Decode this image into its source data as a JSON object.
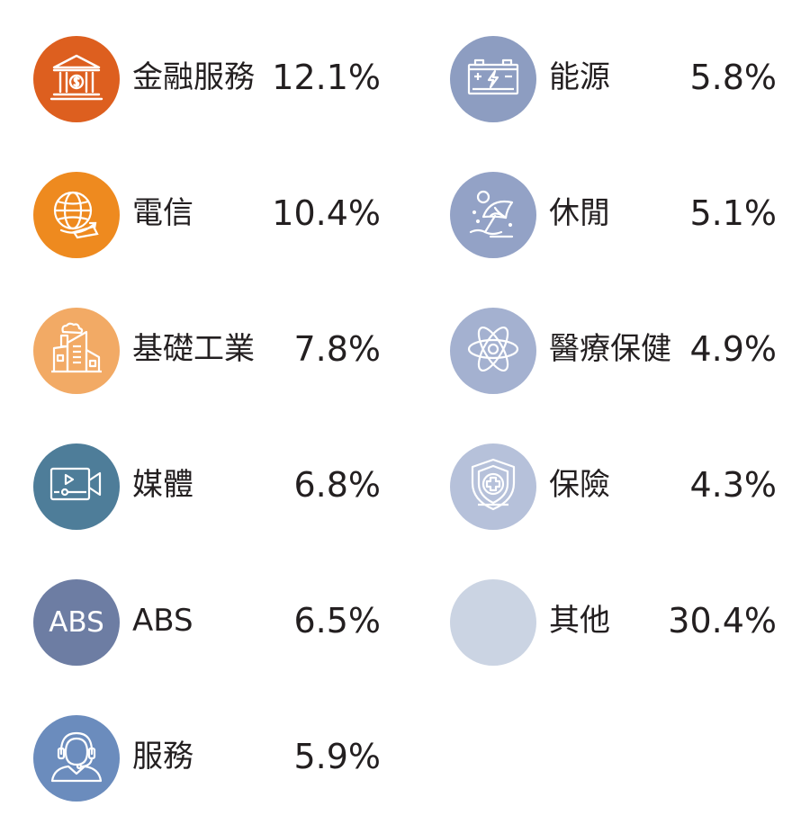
{
  "chart_data": {
    "type": "pie",
    "categories": [
      "金融服務",
      "電信",
      "基礎工業",
      "媒體",
      "ABS",
      "服務",
      "能源",
      "休閒",
      "醫療保健",
      "保險",
      "其他"
    ],
    "values": [
      12.1,
      10.4,
      7.8,
      6.8,
      6.5,
      5.9,
      5.8,
      5.1,
      4.9,
      4.3,
      30.4
    ],
    "title": "",
    "xlabel": "",
    "ylabel": "",
    "unit": "%"
  },
  "legend": {
    "left": [
      {
        "label": "金融服務",
        "value_text": "12.1%",
        "color": "#dd5f1f",
        "icon": "bank-icon"
      },
      {
        "label": "電信",
        "value_text": "10.4%",
        "color": "#ee8a1f",
        "icon": "globe-icon"
      },
      {
        "label": "基礎工業",
        "value_text": "7.8%",
        "color": "#f2aa65",
        "icon": "factory-icon"
      },
      {
        "label": "媒體",
        "value_text": "6.8%",
        "color": "#4e7d99",
        "icon": "video-camera-icon"
      },
      {
        "label": "ABS",
        "value_text": "6.5%",
        "color": "#6d7da3",
        "icon": "abs-text-icon",
        "icon_text": "ABS"
      },
      {
        "label": "服務",
        "value_text": "5.9%",
        "color": "#6b8cbd",
        "icon": "headset-user-icon"
      }
    ],
    "right": [
      {
        "label": "能源",
        "value_text": "5.8%",
        "color": "#8d9dc1",
        "icon": "battery-icon"
      },
      {
        "label": "休閒",
        "value_text": "5.1%",
        "color": "#93a2c6",
        "icon": "beach-umbrella-icon"
      },
      {
        "label": "醫療保健",
        "value_text": "4.9%",
        "color": "#a4b1d0",
        "icon": "atom-icon"
      },
      {
        "label": "保險",
        "value_text": "4.3%",
        "color": "#b6c1da",
        "icon": "shield-cross-icon"
      },
      {
        "label": "其他",
        "value_text": "30.4%",
        "color": "#cbd4e3",
        "icon": "blank-circle"
      }
    ]
  }
}
